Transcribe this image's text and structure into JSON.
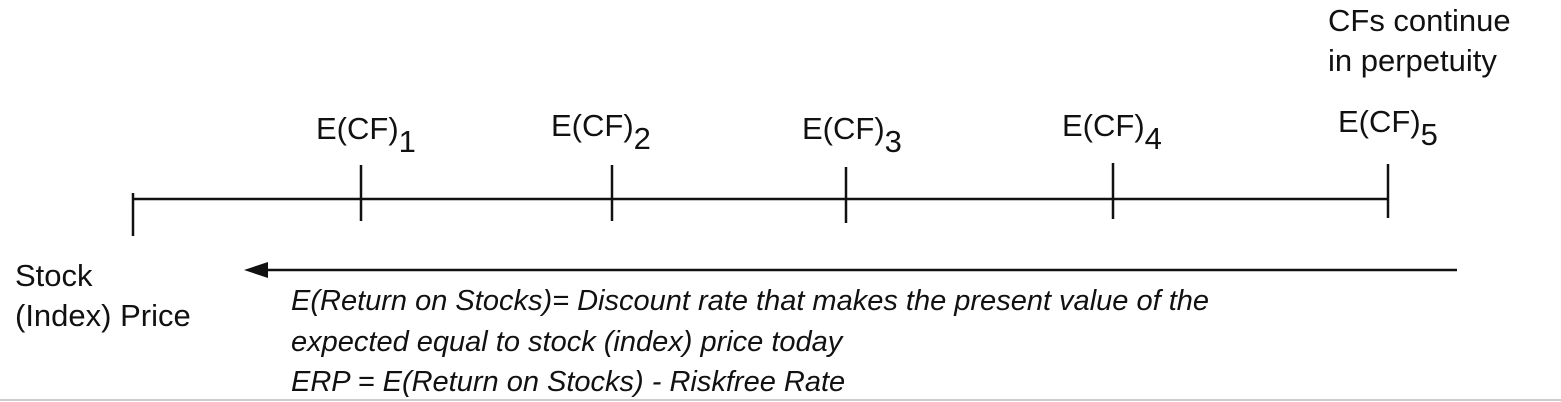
{
  "perpetuity_note": [
    "CFs continue",
    "in perpetuity"
  ],
  "cash_flows": [
    {
      "label": "E(CF)",
      "subscript": "1"
    },
    {
      "label": "E(CF)",
      "subscript": "2"
    },
    {
      "label": "E(CF)",
      "subscript": "3"
    },
    {
      "label": "E(CF)",
      "subscript": "4"
    },
    {
      "label": "E(CF)",
      "subscript": "5"
    }
  ],
  "price_label": [
    "Stock",
    "(Index) Price"
  ],
  "explanation": [
    "E(Return on Stocks)= Discount rate that makes the present value of the",
    "expected equal to stock (index) price today",
    "ERP = E(Return on Stocks) - Riskfree Rate"
  ]
}
